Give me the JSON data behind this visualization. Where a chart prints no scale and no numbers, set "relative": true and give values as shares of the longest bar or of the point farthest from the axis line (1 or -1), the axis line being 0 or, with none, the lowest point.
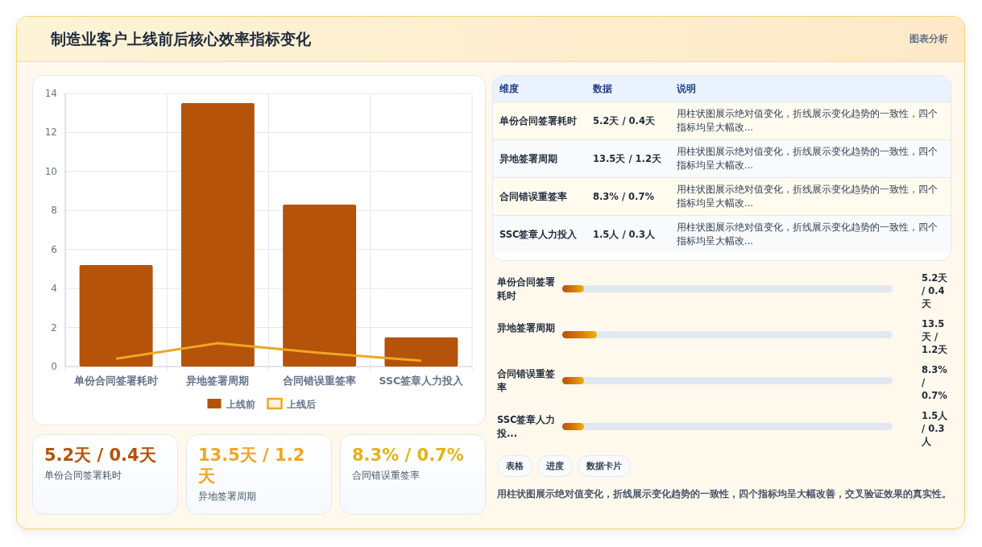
{
  "chart_data": [
    {
      "type": "bar",
      "title": "制造业客户上线前后核心效率指标变化",
      "categories": [
        "单份合同签署耗时",
        "异地签署周期",
        "合同错误重签率",
        "SSC签章人力投入"
      ],
      "series": [
        {
          "name": "上线前",
          "color": "#b45309",
          "values": [
            5.2,
            13.5,
            8.3,
            1.5
          ]
        },
        {
          "name": "上线后",
          "type": "line",
          "color": "#f0a623",
          "values": [
            0.4,
            1.2,
            0.7,
            0.3
          ]
        }
      ],
      "ylim": [
        0,
        14
      ],
      "yticks": [
        0,
        2,
        4,
        6,
        8,
        10,
        12,
        14
      ],
      "grid": true,
      "legend": "bottom",
      "annotations": [
        "图表分析"
      ]
    },
    {
      "type": "other",
      "annotations": [
        "维度",
        "数据",
        "说明",
        "单份合同签署耗时",
        "5.2天 / 0.4天",
        "用柱状图展示绝对值变化，折线展示变化趋势的一致性，四个指标均呈大幅改...",
        "异地签署周期",
        "13.5天 / 1.2天",
        "用柱状图展示绝对值变化，折线展示变化趋势的一致性，四个指标均呈大幅改...",
        "合同错误重签率",
        "8.3% / 0.7%",
        "用柱状图展示绝对值变化，折线展示变化趋势的一致性，四个指标均呈大幅改...",
        "SSC签章人力投入",
        "1.5人 / 0.3人",
        "用柱状图展示绝对值变化，折线展示变化趋势的一致性，四个指标均呈大幅改..."
      ]
    },
    {
      "type": "bar",
      "orientation": "horizontal",
      "relative": true,
      "categories": [
        "单份合同签署耗时",
        "异地签署周期",
        "合同错误重签率",
        "SSC签章人力投..."
      ],
      "values": [
        0.62,
        1,
        0.62,
        0.62
      ],
      "color": "#d97706",
      "annotations": [
        "5.2天 / 0.4天",
        "13.5天 / 1.2天",
        "8.3% / 0.7%",
        "1.5人 / 0.3人",
        "表格",
        "进度",
        "数据卡片",
        "用柱状图展示绝对值变化，折线展示变化趋势的一致性，四个指标均呈大幅改善，交叉验证效果的真实性。"
      ]
    },
    {
      "type": "other",
      "annotations": [
        "5.2天 / 0.4天",
        "单份合同签署耗时",
        "13.5天 / 1.2天",
        "异地签署周期",
        "8.3% / 0.7%",
        "合同错误重签率"
      ]
    }
  ]
}
